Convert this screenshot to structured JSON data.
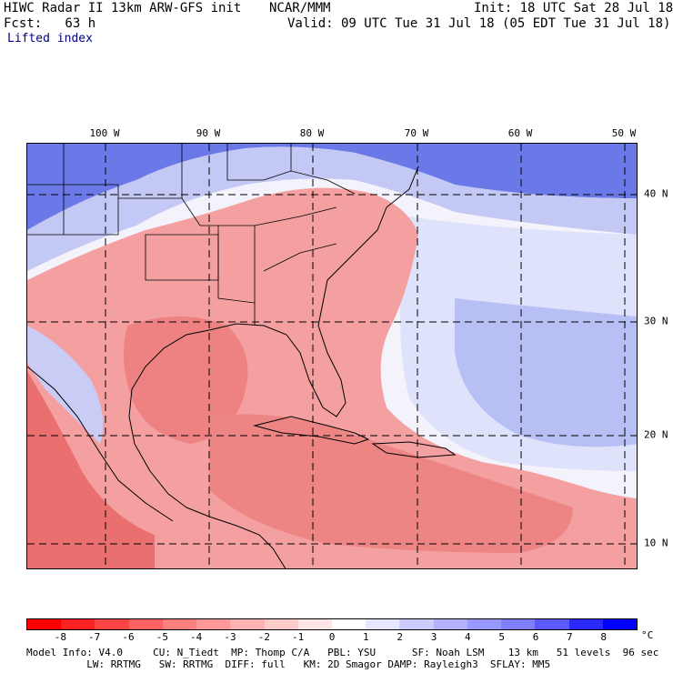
{
  "header": {
    "model_title": "HIWC Radar II 13km ARW-GFS init",
    "org": "NCAR/MMM",
    "init": "Init: 18 UTC Sat 28 Jul 18",
    "fcst": "Fcst:   63 h",
    "valid": "Valid: 09 UTC Tue 31 Jul 18 (05 EDT Tue 31 Jul 18)",
    "field": "Lifted index"
  },
  "map": {
    "lon_labels": [
      "100 W",
      "90 W",
      "80 W",
      "70 W",
      "60 W",
      "50 W"
    ],
    "lat_labels": [
      "40 N",
      "30 N",
      "20 N",
      "10 N"
    ],
    "negative_color": "#f08080",
    "positive_color": "#6a7ae8"
  },
  "colorbar": {
    "ticks": [
      "-8",
      "-7",
      "-6",
      "-5",
      "-4",
      "-3",
      "-2",
      "-1",
      "0",
      "1",
      "2",
      "3",
      "4",
      "5",
      "6",
      "7",
      "8"
    ],
    "unit": "°C",
    "colors": [
      "#ff0000",
      "#ff2222",
      "#ff4444",
      "#ff6262",
      "#ff7f7f",
      "#ff9898",
      "#ffb2b2",
      "#ffcccc",
      "#ffe6e6",
      "#ffffff",
      "#e6e6ff",
      "#ccccff",
      "#b2b2ff",
      "#9898ff",
      "#7f7fff",
      "#5a5aff",
      "#2a2aff",
      "#0000ff"
    ]
  },
  "footer": {
    "line1": "Model Info: V4.0     CU: N_Tiedt  MP: Thomp C/A   PBL: YSU      SF: Noah LSM    13 km   51 levels  96 sec",
    "line2": "          LW: RRTMG   SW: RRTMG  DIFF: full   KM: 2D Smagor DAMP: Rayleigh3  SFLAY: MM5"
  }
}
